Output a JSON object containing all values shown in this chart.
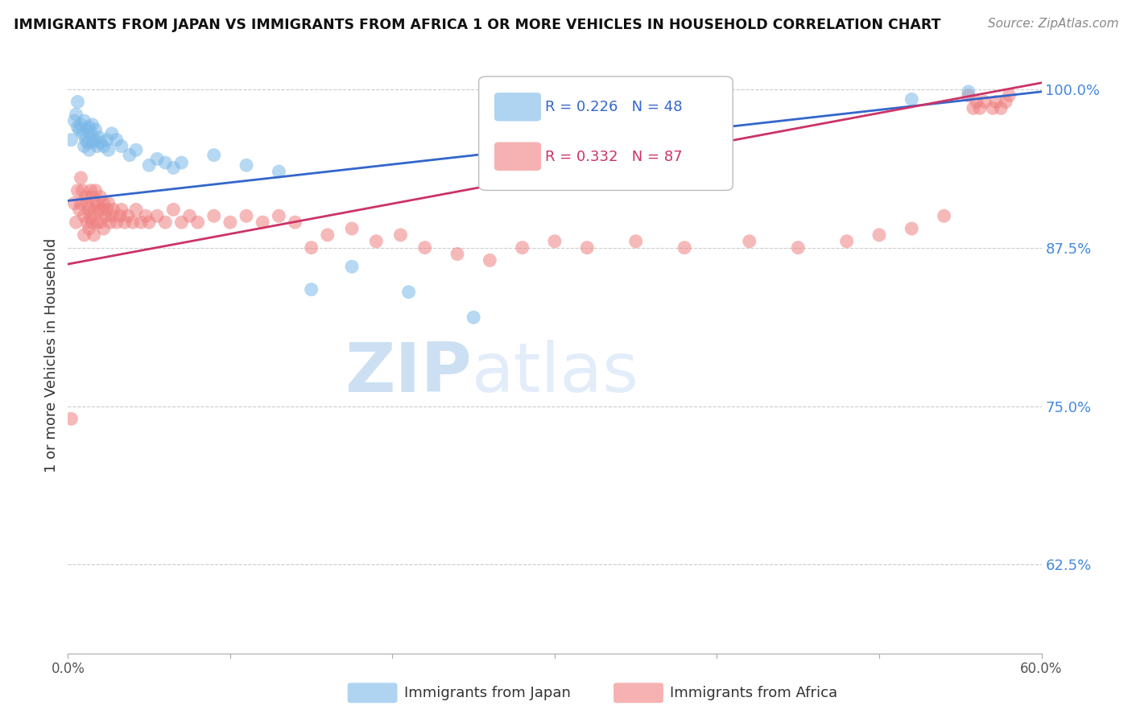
{
  "title": "IMMIGRANTS FROM JAPAN VS IMMIGRANTS FROM AFRICA 1 OR MORE VEHICLES IN HOUSEHOLD CORRELATION CHART",
  "source": "Source: ZipAtlas.com",
  "ylabel": "1 or more Vehicles in Household",
  "R_japan": 0.226,
  "N_japan": 48,
  "R_africa": 0.332,
  "N_africa": 87,
  "color_japan": "#7ab8e8",
  "color_africa": "#f08080",
  "trendline_japan": "#3366cc",
  "trendline_africa": "#cc3366",
  "xlim": [
    0.0,
    0.6
  ],
  "ylim": [
    0.555,
    1.025
  ],
  "yticks": [
    0.625,
    0.75,
    0.875,
    1.0
  ],
  "ytick_labels": [
    "62.5%",
    "75.0%",
    "87.5%",
    "100.0%"
  ],
  "xticks": [
    0.0,
    0.1,
    0.2,
    0.3,
    0.4,
    0.5,
    0.6
  ],
  "xtick_labels": [
    "0.0%",
    "",
    "",
    "",
    "",
    "",
    "60.0%"
  ],
  "watermark_zip": "ZIP",
  "watermark_atlas": "atlas",
  "legend_japan": "Immigrants from Japan",
  "legend_africa": "Immigrants from Africa",
  "japan_x": [
    0.002,
    0.004,
    0.005,
    0.006,
    0.006,
    0.007,
    0.008,
    0.009,
    0.01,
    0.01,
    0.011,
    0.012,
    0.012,
    0.013,
    0.013,
    0.014,
    0.015,
    0.015,
    0.016,
    0.017,
    0.018,
    0.019,
    0.02,
    0.022,
    0.024,
    0.025,
    0.027,
    0.03,
    0.033,
    0.038,
    0.042,
    0.05,
    0.055,
    0.06,
    0.065,
    0.07,
    0.09,
    0.11,
    0.13,
    0.15,
    0.175,
    0.21,
    0.25,
    0.28,
    0.31,
    0.38,
    0.52,
    0.555
  ],
  "japan_y": [
    0.96,
    0.975,
    0.98,
    0.97,
    0.99,
    0.968,
    0.972,
    0.965,
    0.975,
    0.955,
    0.96,
    0.968,
    0.958,
    0.97,
    0.952,
    0.965,
    0.972,
    0.958,
    0.96,
    0.968,
    0.955,
    0.962,
    0.958,
    0.955,
    0.96,
    0.952,
    0.965,
    0.96,
    0.955,
    0.948,
    0.952,
    0.94,
    0.945,
    0.942,
    0.938,
    0.942,
    0.948,
    0.94,
    0.935,
    0.842,
    0.86,
    0.84,
    0.82,
    0.935,
    0.95,
    0.962,
    0.992,
    0.998
  ],
  "africa_x": [
    0.002,
    0.004,
    0.005,
    0.006,
    0.007,
    0.008,
    0.008,
    0.009,
    0.01,
    0.01,
    0.011,
    0.012,
    0.012,
    0.013,
    0.013,
    0.014,
    0.014,
    0.015,
    0.015,
    0.016,
    0.016,
    0.017,
    0.018,
    0.018,
    0.019,
    0.02,
    0.02,
    0.021,
    0.022,
    0.022,
    0.023,
    0.024,
    0.025,
    0.026,
    0.027,
    0.028,
    0.03,
    0.032,
    0.033,
    0.035,
    0.037,
    0.04,
    0.042,
    0.045,
    0.048,
    0.05,
    0.055,
    0.06,
    0.065,
    0.07,
    0.075,
    0.08,
    0.09,
    0.1,
    0.11,
    0.12,
    0.13,
    0.14,
    0.15,
    0.16,
    0.175,
    0.19,
    0.205,
    0.22,
    0.24,
    0.26,
    0.28,
    0.3,
    0.32,
    0.35,
    0.38,
    0.42,
    0.45,
    0.48,
    0.5,
    0.52,
    0.54,
    0.555,
    0.558,
    0.56,
    0.562,
    0.565,
    0.57,
    0.572,
    0.575,
    0.578,
    0.58
  ],
  "africa_y": [
    0.74,
    0.91,
    0.895,
    0.92,
    0.905,
    0.93,
    0.91,
    0.92,
    0.9,
    0.885,
    0.915,
    0.91,
    0.895,
    0.905,
    0.89,
    0.92,
    0.9,
    0.915,
    0.895,
    0.905,
    0.885,
    0.92,
    0.91,
    0.895,
    0.905,
    0.915,
    0.895,
    0.905,
    0.91,
    0.89,
    0.9,
    0.905,
    0.91,
    0.895,
    0.9,
    0.905,
    0.895,
    0.9,
    0.905,
    0.895,
    0.9,
    0.895,
    0.905,
    0.895,
    0.9,
    0.895,
    0.9,
    0.895,
    0.905,
    0.895,
    0.9,
    0.895,
    0.9,
    0.895,
    0.9,
    0.895,
    0.9,
    0.895,
    0.875,
    0.885,
    0.89,
    0.88,
    0.885,
    0.875,
    0.87,
    0.865,
    0.875,
    0.88,
    0.875,
    0.88,
    0.875,
    0.88,
    0.875,
    0.88,
    0.885,
    0.89,
    0.9,
    0.995,
    0.985,
    0.99,
    0.985,
    0.99,
    0.985,
    0.99,
    0.985,
    0.99,
    0.995
  ]
}
